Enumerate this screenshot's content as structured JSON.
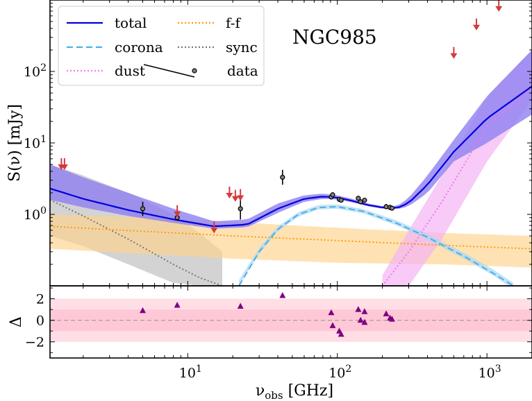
{
  "chart_data": {
    "type": "line",
    "title": "NGC985",
    "xscale": "log",
    "yscale": "log",
    "xlim": [
      1.2,
      2000
    ],
    "ylim": [
      0.1,
      1000
    ],
    "xlabel": "ν_obs [GHz]",
    "ylabel": "S(ν) [mJy]",
    "x_ticks": [
      {
        "value": 10,
        "base": "10",
        "exp": "1"
      },
      {
        "value": 100,
        "base": "10",
        "exp": "2"
      },
      {
        "value": 1000,
        "base": "10",
        "exp": "3"
      }
    ],
    "y_ticks": [
      {
        "value": 1,
        "base": "10",
        "exp": "0"
      },
      {
        "value": 10,
        "base": "10",
        "exp": "1"
      },
      {
        "value": 100,
        "base": "10",
        "exp": "2"
      }
    ],
    "colors": {
      "total": "#0000dd",
      "total_band": "#8f7ff0",
      "corona": "#4aaee8",
      "corona_band": "#a8d8f5",
      "dust": "#ee77ee",
      "dust_band": "#f4b4f4",
      "ff": "#ff9900",
      "ff_band": "#ffd28c",
      "sync": "#777777",
      "sync_band": "#c8c8c8",
      "upper_limit": "#d63a3a",
      "residual": "#800080",
      "residual_band": "#ffb6c8"
    },
    "legend": [
      {
        "key": "total",
        "label": "total",
        "style": "solid"
      },
      {
        "key": "ff",
        "label": "f-f",
        "style": "dotted"
      },
      {
        "key": "corona",
        "label": "corona",
        "style": "dashed"
      },
      {
        "key": "sync",
        "label": "sync",
        "style": "dotted"
      },
      {
        "key": "dust",
        "label": "dust",
        "style": "dotted"
      },
      {
        "key": "data",
        "label": "data",
        "style": "errorbar"
      }
    ],
    "series": [
      {
        "name": "total",
        "x": [
          1.2,
          2,
          4,
          8,
          15,
          25,
          40,
          60,
          80,
          100,
          130,
          160,
          200,
          250,
          300,
          400,
          600,
          1000,
          2000
        ],
        "values": [
          2.3,
          1.65,
          1.15,
          0.85,
          0.68,
          0.72,
          1.2,
          1.65,
          1.78,
          1.72,
          1.52,
          1.35,
          1.25,
          1.22,
          1.45,
          2.6,
          7.5,
          22,
          62
        ],
        "lower": [
          1.6,
          1.25,
          0.95,
          0.76,
          0.63,
          0.66,
          1.05,
          1.5,
          1.65,
          1.62,
          1.45,
          1.3,
          1.2,
          1.18,
          1.3,
          2.0,
          5.5,
          10,
          25
        ],
        "upper": [
          5.0,
          3.3,
          2.0,
          1.2,
          0.8,
          0.85,
          1.42,
          1.85,
          1.95,
          1.85,
          1.62,
          1.42,
          1.3,
          1.3,
          1.7,
          3.5,
          11,
          45,
          200
        ]
      },
      {
        "name": "corona",
        "x": [
          22,
          30,
          40,
          55,
          75,
          100,
          150,
          250,
          400,
          700,
          1100,
          1500
        ],
        "values": [
          0.1,
          0.3,
          0.62,
          1.0,
          1.25,
          1.28,
          1.1,
          0.75,
          0.48,
          0.26,
          0.15,
          0.1
        ],
        "lower": [
          0.1,
          0.28,
          0.58,
          0.93,
          1.17,
          1.2,
          1.03,
          0.7,
          0.44,
          0.24,
          0.14,
          0.09
        ],
        "upper": [
          0.12,
          0.34,
          0.68,
          1.08,
          1.35,
          1.38,
          1.18,
          0.82,
          0.53,
          0.29,
          0.17,
          0.11
        ]
      },
      {
        "name": "dust",
        "x": [
          200,
          300,
          500,
          1000,
          2000
        ],
        "values": [
          0.1,
          0.3,
          1.5,
          17,
          60
        ],
        "lower": [
          0.1,
          0.1,
          0.45,
          5.5,
          40
        ],
        "upper": [
          0.14,
          0.6,
          3.5,
          45,
          200
        ]
      },
      {
        "name": "f-f",
        "x": [
          1.2,
          5,
          20,
          100,
          500,
          2000
        ],
        "values": [
          0.68,
          0.58,
          0.5,
          0.43,
          0.37,
          0.33
        ],
        "lower": [
          0.33,
          0.28,
          0.24,
          0.21,
          0.2,
          0.18
        ],
        "upper": [
          1.0,
          0.9,
          0.78,
          0.65,
          0.55,
          0.5
        ]
      },
      {
        "name": "sync",
        "x": [
          1.2,
          2,
          4,
          8,
          12,
          17
        ],
        "values": [
          1.6,
          0.95,
          0.45,
          0.2,
          0.13,
          0.1
        ],
        "lower": [
          0.5,
          0.36,
          0.2,
          0.11,
          0.1,
          0.1
        ],
        "upper": [
          5.0,
          3.5,
          2.0,
          1.0,
          0.55,
          0.3
        ]
      }
    ],
    "data_points": [
      {
        "x": 5.0,
        "y": 1.2,
        "ylo": 0.95,
        "yhi": 1.5
      },
      {
        "x": 8.5,
        "y": 0.9,
        "ylo": 0.82,
        "yhi": 1.0
      },
      {
        "x": 22.5,
        "y": 1.2,
        "ylo": 0.85,
        "yhi": 1.6
      },
      {
        "x": 43,
        "y": 3.3,
        "ylo": 2.6,
        "yhi": 4.2
      },
      {
        "x": 91,
        "y": 1.75,
        "ylo": 1.62,
        "yhi": 1.9
      },
      {
        "x": 93,
        "y": 1.88,
        "ylo": 1.74,
        "yhi": 2.02
      },
      {
        "x": 103,
        "y": 1.62,
        "ylo": 1.5,
        "yhi": 1.75
      },
      {
        "x": 106,
        "y": 1.58,
        "ylo": 1.47,
        "yhi": 1.7
      },
      {
        "x": 138,
        "y": 1.68,
        "ylo": 1.56,
        "yhi": 1.82
      },
      {
        "x": 143,
        "y": 1.5,
        "ylo": 1.4,
        "yhi": 1.62
      },
      {
        "x": 152,
        "y": 1.58,
        "ylo": 1.47,
        "yhi": 1.7
      },
      {
        "x": 212,
        "y": 1.28,
        "ylo": 1.18,
        "yhi": 1.4
      },
      {
        "x": 225,
        "y": 1.25,
        "ylo": 1.15,
        "yhi": 1.36
      },
      {
        "x": 232,
        "y": 1.22,
        "ylo": 1.13,
        "yhi": 1.32
      }
    ],
    "upper_limits": [
      {
        "x": 1.43,
        "y": 5.0
      },
      {
        "x": 1.5,
        "y": 5.0
      },
      {
        "x": 8.5,
        "y": 1.1
      },
      {
        "x": 15,
        "y": 0.65
      },
      {
        "x": 19,
        "y": 2.0
      },
      {
        "x": 20.8,
        "y": 1.8
      },
      {
        "x": 22.5,
        "y": 1.85
      },
      {
        "x": 600,
        "y": 180
      },
      {
        "x": 850,
        "y": 450
      },
      {
        "x": 1200,
        "y": 820
      }
    ],
    "residuals": {
      "ylabel": "Δ",
      "ylim": [
        -3.5,
        3.2
      ],
      "yticks": [
        "2",
        "0",
        "−2"
      ],
      "ytick_values": [
        2,
        0,
        -2
      ],
      "band_inner": 1,
      "band_outer": 2,
      "points": [
        {
          "x": 5.0,
          "y": 0.9
        },
        {
          "x": 8.5,
          "y": 1.4
        },
        {
          "x": 22.5,
          "y": 1.3
        },
        {
          "x": 43,
          "y": 2.3
        },
        {
          "x": 91,
          "y": 0.7
        },
        {
          "x": 93,
          "y": -0.5
        },
        {
          "x": 103,
          "y": -1.0
        },
        {
          "x": 106,
          "y": -1.3
        },
        {
          "x": 138,
          "y": 1.0
        },
        {
          "x": 143,
          "y": 0.0
        },
        {
          "x": 152,
          "y": -0.2
        },
        {
          "x": 152,
          "y": 0.8
        },
        {
          "x": 212,
          "y": 0.6
        },
        {
          "x": 225,
          "y": 0.2
        },
        {
          "x": 232,
          "y": 0.1
        }
      ]
    }
  }
}
